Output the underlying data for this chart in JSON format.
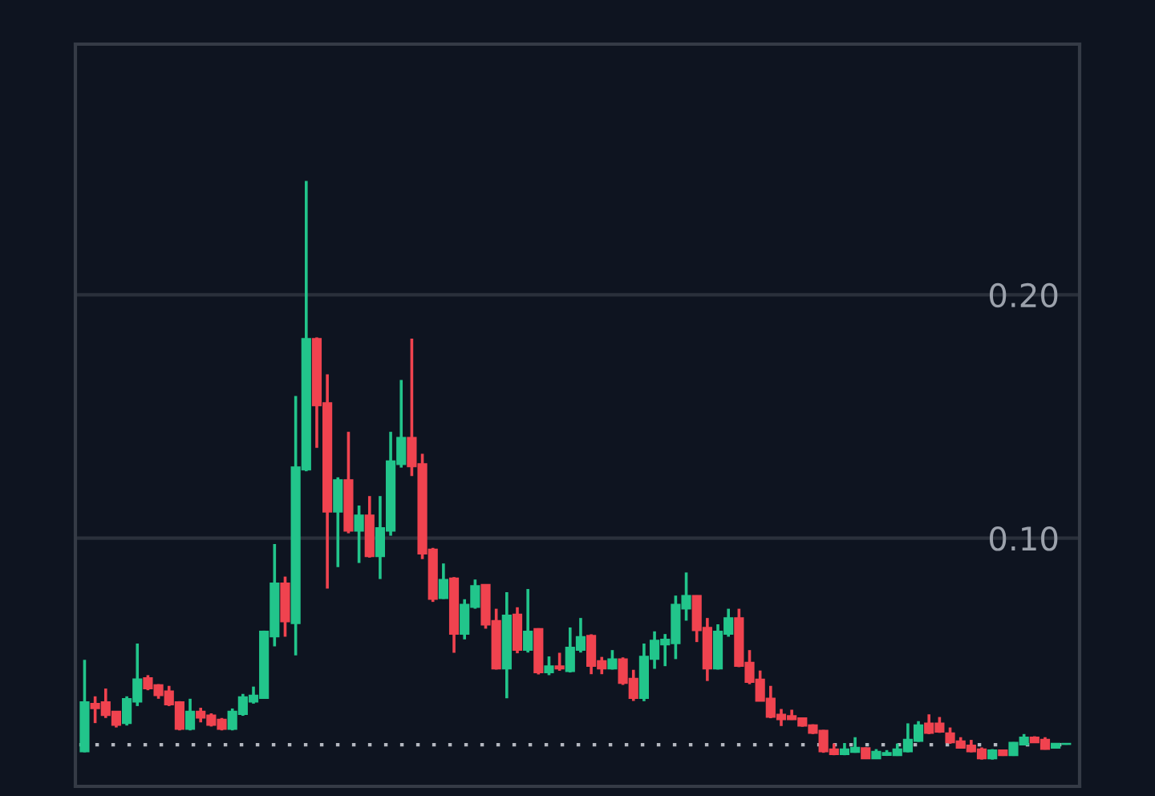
{
  "chart_data": {
    "type": "candlestick",
    "categories": [
      null,
      null,
      null,
      null,
      null,
      null,
      null,
      null,
      null,
      null,
      null,
      null,
      null,
      null,
      null,
      null,
      null,
      null,
      null,
      null,
      null,
      null,
      null,
      null,
      null,
      null,
      null,
      null,
      null,
      null,
      null,
      null,
      null,
      null,
      null,
      null,
      null,
      null,
      null,
      null,
      null,
      null,
      null,
      null,
      null,
      null,
      null,
      null,
      null,
      null,
      null,
      null,
      null,
      null,
      null,
      null,
      null,
      null,
      null,
      null,
      null,
      null,
      null,
      null,
      null,
      null,
      null,
      null,
      null,
      null,
      null,
      null,
      null,
      null,
      null,
      null,
      null,
      null,
      null,
      null,
      null,
      null,
      null,
      null,
      null,
      null,
      null,
      null,
      null,
      null,
      null,
      null,
      null,
      null
    ],
    "ohlc": [
      [
        0.0123,
        0.05,
        0.012,
        0.0327
      ],
      [
        0.032,
        0.035,
        0.024,
        0.03
      ],
      [
        0.0327,
        0.0382,
        0.0261,
        0.0272
      ],
      [
        0.0288,
        0.029,
        0.0222,
        0.0232
      ],
      [
        0.0239,
        0.035,
        0.023,
        0.034
      ],
      [
        0.0327,
        0.0567,
        0.031,
        0.0421
      ],
      [
        0.0426,
        0.0437,
        0.0375,
        0.0382
      ],
      [
        0.0397,
        0.04,
        0.034,
        0.0354
      ],
      [
        0.0371,
        0.0393,
        0.031,
        0.0316
      ],
      [
        0.0327,
        0.033,
        0.021,
        0.0215
      ],
      [
        0.0215,
        0.034,
        0.021,
        0.0288
      ],
      [
        0.0288,
        0.0303,
        0.0243,
        0.0261
      ],
      [
        0.0272,
        0.028,
        0.0226,
        0.0232
      ],
      [
        0.0255,
        0.0261,
        0.021,
        0.0215
      ],
      [
        0.0215,
        0.03,
        0.021,
        0.0288
      ],
      [
        0.0276,
        0.036,
        0.027,
        0.0347
      ],
      [
        0.0327,
        0.039,
        0.032,
        0.0354
      ],
      [
        0.0342,
        0.062,
        0.034,
        0.0617
      ],
      [
        0.0595,
        0.0976,
        0.0555,
        0.0815
      ],
      [
        0.0815,
        0.0842,
        0.0595,
        0.0657
      ],
      [
        0.065,
        0.1584,
        0.0518,
        0.1292
      ],
      [
        0.1281,
        0.2468,
        0.1275,
        0.182
      ],
      [
        0.182,
        0.1825,
        0.1371,
        0.1545
      ],
      [
        0.1556,
        0.1673,
        0.0793,
        0.1108
      ],
      [
        0.1108,
        0.125,
        0.0881,
        0.1239
      ],
      [
        0.1239,
        0.1437,
        0.102,
        0.103
      ],
      [
        0.103,
        0.1134,
        0.0898,
        0.1094
      ],
      [
        0.1094,
        0.1173,
        0.092,
        0.0925
      ],
      [
        0.0925,
        0.1173,
        0.0832,
        0.1042
      ],
      [
        0.103,
        0.1437,
        0.101,
        0.1317
      ],
      [
        0.1303,
        0.165,
        0.129,
        0.1413
      ],
      [
        0.1413,
        0.182,
        0.1255,
        0.1294
      ],
      [
        0.1305,
        0.1347,
        0.0914,
        0.0936
      ],
      [
        0.0954,
        0.096,
        0.0738,
        0.0749
      ],
      [
        0.0753,
        0.0896,
        0.075,
        0.083
      ],
      [
        0.0835,
        0.084,
        0.0529,
        0.0606
      ],
      [
        0.0606,
        0.0749,
        0.0584,
        0.0727
      ],
      [
        0.0716,
        0.083,
        0.071,
        0.0804
      ],
      [
        0.0809,
        0.081,
        0.0628,
        0.0644
      ],
      [
        0.0661,
        0.071,
        0.046,
        0.0463
      ],
      [
        0.0463,
        0.0778,
        0.0342,
        0.0683
      ],
      [
        0.0687,
        0.0716,
        0.0527,
        0.054
      ],
      [
        0.054,
        0.0791,
        0.053,
        0.0617
      ],
      [
        0.0628,
        0.063,
        0.044,
        0.0448
      ],
      [
        0.0448,
        0.0514,
        0.0437,
        0.0474
      ],
      [
        0.0474,
        0.0529,
        0.0455,
        0.0463
      ],
      [
        0.0453,
        0.0633,
        0.0448,
        0.0551
      ],
      [
        0.054,
        0.0672,
        0.053,
        0.0595
      ],
      [
        0.06,
        0.0605,
        0.0441,
        0.0474
      ],
      [
        0.0496,
        0.0512,
        0.0441,
        0.0463
      ],
      [
        0.0463,
        0.054,
        0.046,
        0.0503
      ],
      [
        0.0503,
        0.051,
        0.0397,
        0.0404
      ],
      [
        0.0423,
        0.0459,
        0.0331,
        0.0342
      ],
      [
        0.0342,
        0.0567,
        0.033,
        0.0514
      ],
      [
        0.0503,
        0.0617,
        0.0463,
        0.058
      ],
      [
        0.0562,
        0.0606,
        0.0474,
        0.0584
      ],
      [
        0.0567,
        0.0764,
        0.0503,
        0.0727
      ],
      [
        0.071,
        0.0859,
        0.0661,
        0.0764
      ],
      [
        0.0764,
        0.0765,
        0.0573,
        0.0621
      ],
      [
        0.0633,
        0.0672,
        0.0413,
        0.0463
      ],
      [
        0.0463,
        0.0646,
        0.046,
        0.0617
      ],
      [
        0.0606,
        0.071,
        0.0595,
        0.0672
      ],
      [
        0.0672,
        0.071,
        0.047,
        0.0474
      ],
      [
        0.0489,
        0.054,
        0.04,
        0.0408
      ],
      [
        0.042,
        0.0456,
        0.033,
        0.0331
      ],
      [
        0.0342,
        0.0393,
        0.026,
        0.0265
      ],
      [
        0.0276,
        0.0298,
        0.0228,
        0.0255
      ],
      [
        0.027,
        0.0295,
        0.0253,
        0.0255
      ],
      [
        0.0261,
        0.0262,
        0.0225,
        0.0228
      ],
      [
        0.0232,
        0.0235,
        0.0195,
        0.0199
      ],
      [
        0.021,
        0.0212,
        0.0118,
        0.0123
      ],
      [
        0.0133,
        0.0156,
        0.0108,
        0.0111
      ],
      [
        0.0111,
        0.0158,
        0.0108,
        0.0133
      ],
      [
        0.012,
        0.0182,
        0.0118,
        0.014
      ],
      [
        0.0138,
        0.014,
        0.0092,
        0.0094
      ],
      [
        0.0094,
        0.0133,
        0.0092,
        0.0123
      ],
      [
        0.0108,
        0.0129,
        0.0105,
        0.0118
      ],
      [
        0.0107,
        0.0156,
        0.0105,
        0.0133
      ],
      [
        0.0123,
        0.0239,
        0.012,
        0.0173
      ],
      [
        0.0166,
        0.0248,
        0.0163,
        0.0232
      ],
      [
        0.0239,
        0.0276,
        0.0195,
        0.0199
      ],
      [
        0.0239,
        0.0265,
        0.02,
        0.0204
      ],
      [
        0.0199,
        0.0222,
        0.0155,
        0.016
      ],
      [
        0.0166,
        0.0182,
        0.0135,
        0.0138
      ],
      [
        0.0149,
        0.0171,
        0.012,
        0.0123
      ],
      [
        0.0133,
        0.014,
        0.009,
        0.0094
      ],
      [
        0.0094,
        0.0133,
        0.009,
        0.0129
      ],
      [
        0.0129,
        0.0131,
        0.0105,
        0.0107
      ],
      [
        0.0107,
        0.0162,
        0.0105,
        0.016
      ],
      [
        0.0151,
        0.0195,
        0.015,
        0.0182
      ],
      [
        0.0182,
        0.0186,
        0.0158,
        0.016
      ],
      [
        0.0173,
        0.0182,
        0.0131,
        0.0133
      ],
      [
        0.0138,
        0.0158,
        0.0136,
        0.0156
      ],
      [
        0.0153,
        0.0158,
        0.0151,
        0.0156
      ]
    ],
    "colors": [
      "#22c58b",
      "#f0434f",
      "#f0434f",
      "#f0434f",
      "#22c58b",
      "#22c58b",
      "#f0434f",
      "#f0434f",
      "#f0434f",
      "#f0434f",
      "#22c58b",
      "#f0434f",
      "#f0434f",
      "#f0434f",
      "#22c58b",
      "#22c58b",
      "#22c58b",
      "#22c58b",
      "#22c58b",
      "#f0434f",
      "#22c58b",
      "#22c58b",
      "#f0434f",
      "#f0434f",
      "#22c58b",
      "#f0434f",
      "#22c58b",
      "#f0434f",
      "#22c58b",
      "#22c58b",
      "#22c58b",
      "#f0434f",
      "#f0434f",
      "#f0434f",
      "#22c58b",
      "#f0434f",
      "#22c58b",
      "#22c58b",
      "#f0434f",
      "#f0434f",
      "#22c58b",
      "#f0434f",
      "#22c58b",
      "#f0434f",
      "#22c58b",
      "#f0434f",
      "#22c58b",
      "#22c58b",
      "#f0434f",
      "#f0434f",
      "#22c58b",
      "#f0434f",
      "#f0434f",
      "#22c58b",
      "#22c58b",
      "#22c58b",
      "#22c58b",
      "#22c58b",
      "#f0434f",
      "#f0434f",
      "#22c58b",
      "#22c58b",
      "#f0434f",
      "#f0434f",
      "#f0434f",
      "#f0434f",
      "#f0434f",
      "#f0434f",
      "#f0434f",
      "#f0434f",
      "#f0434f",
      "#f0434f",
      "#22c58b",
      "#22c58b",
      "#f0434f",
      "#22c58b",
      "#22c58b",
      "#22c58b",
      "#22c58b",
      "#22c58b",
      "#f0434f",
      "#f0434f",
      "#f0434f",
      "#f0434f",
      "#f0434f",
      "#f0434f",
      "#22c58b",
      "#f0434f",
      "#22c58b",
      "#22c58b",
      "#f0434f",
      "#f0434f",
      "#22c58b",
      "#22c58b"
    ],
    "ylim": [
      -0.002,
      0.303
    ],
    "yticks": [
      {
        "value": 0.1,
        "label": "0.10"
      },
      {
        "value": 0.2,
        "label": "0.20"
      }
    ],
    "tick_labels": "y",
    "grid": "y",
    "ref_lines": [
      {
        "axis": "y",
        "value": 0.0151,
        "line_style": "dotted",
        "color": "#b4b8c0"
      }
    ]
  }
}
